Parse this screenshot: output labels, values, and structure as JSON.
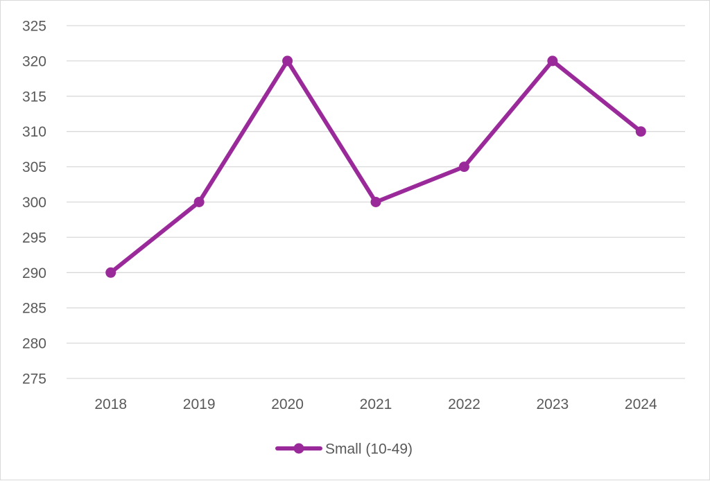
{
  "chart_data": {
    "type": "line",
    "categories": [
      "2018",
      "2019",
      "2020",
      "2021",
      "2022",
      "2023",
      "2024"
    ],
    "series": [
      {
        "name": "Small (10-49)",
        "values": [
          290,
          300,
          320,
          300,
          305,
          320,
          310
        ],
        "color": "#9a2a9a"
      }
    ],
    "ylim": [
      275,
      325
    ],
    "yticks": [
      275,
      280,
      285,
      290,
      295,
      300,
      305,
      310,
      315,
      320,
      325
    ],
    "grid": true,
    "gridColor": "#d9d9d9",
    "legend": "bottom",
    "title": "",
    "xlabel": "",
    "ylabel": ""
  }
}
